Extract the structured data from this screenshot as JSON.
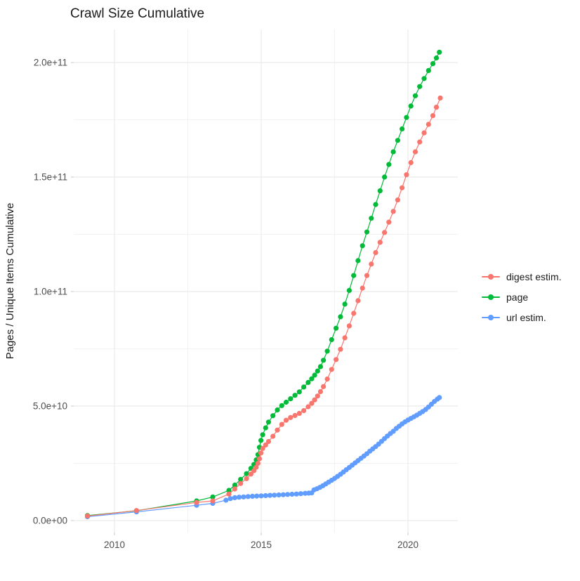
{
  "title": "Crawl Size Cumulative",
  "colors": {
    "background": "#FFFFFF",
    "grid_major": "#EBEBEB",
    "grid_minor": "#F2F2F2",
    "tick_mark": "#C9C9C9",
    "tick_label": "#4D4D4D",
    "text": "#1A1A1A",
    "digest": "#F8766D",
    "page": "#00BA38",
    "url": "#619CFF"
  },
  "y_axis": {
    "label": "Pages / Unique Items Cumulative",
    "tick_labels": [
      "0.0e+00",
      "5.0e+10",
      "1.0e+11",
      "1.5e+11",
      "2.0e+11"
    ],
    "tick_values": [
      0,
      50000000000.0,
      100000000000.0,
      150000000000.0,
      200000000000.0
    ]
  },
  "x_axis": {
    "tick_labels": [
      "2010",
      "2015",
      "2020"
    ],
    "tick_values": [
      2010,
      2015,
      2020
    ]
  },
  "legend": {
    "items": [
      {
        "label": "digest estim.",
        "color": "#F8766D"
      },
      {
        "label": "page",
        "color": "#00BA38"
      },
      {
        "label": "url estim.",
        "color": "#619CFF"
      }
    ]
  },
  "chart_data": {
    "type": "line",
    "title": "Crawl Size Cumulative",
    "xlabel": "",
    "ylabel": "Pages / Unique Items Cumulative",
    "xlim": [
      2008.6,
      2021.7
    ],
    "ylim": [
      0,
      214000000000.0
    ],
    "x_major": [
      2010,
      2015,
      2020
    ],
    "x_minor": [
      2012.5,
      2017.5
    ],
    "y_major": [
      0,
      50000000000.0,
      100000000000.0,
      150000000000.0,
      200000000000.0
    ],
    "y_minor": [
      25000000000.0,
      75000000000.0,
      125000000000.0,
      175000000000.0
    ],
    "grid": true,
    "legend_position": "right",
    "marker": "point",
    "draw_order": [
      1,
      2,
      0
    ],
    "series": [
      {
        "name": "digest estim.",
        "color": "#F8766D",
        "points": [
          [
            2009.08,
            2000000000.0
          ],
          [
            2010.75,
            4400000000.0
          ],
          [
            2012.8,
            7900000000.0
          ],
          [
            2013.35,
            8600000000.0
          ],
          [
            2013.9,
            11600000000.0
          ],
          [
            2014.1,
            13800000000.0
          ],
          [
            2014.3,
            16200000000.0
          ],
          [
            2014.5,
            18300000000.0
          ],
          [
            2014.65,
            20300000000.0
          ],
          [
            2014.75,
            21800000000.0
          ],
          [
            2014.83,
            23300000000.0
          ],
          [
            2014.89,
            25000000000.0
          ],
          [
            2014.94,
            27000000000.0
          ],
          [
            2014.99,
            29500000000.0
          ],
          [
            2015.05,
            31500000000.0
          ],
          [
            2015.15,
            33000000000.0
          ],
          [
            2015.25,
            34500000000.0
          ],
          [
            2015.4,
            36800000000.0
          ],
          [
            2015.55,
            39500000000.0
          ],
          [
            2015.7,
            42000000000.0
          ],
          [
            2015.85,
            43800000000.0
          ],
          [
            2016.0,
            45000000000.0
          ],
          [
            2016.15,
            45900000000.0
          ],
          [
            2016.3,
            46800000000.0
          ],
          [
            2016.45,
            48000000000.0
          ],
          [
            2016.6,
            49700000000.0
          ],
          [
            2016.72,
            51200000000.0
          ],
          [
            2016.82,
            52700000000.0
          ],
          [
            2016.92,
            54400000000.0
          ],
          [
            2017.02,
            56300000000.0
          ],
          [
            2017.12,
            58500000000.0
          ],
          [
            2017.25,
            61800000000.0
          ],
          [
            2017.4,
            66000000000.0
          ],
          [
            2017.55,
            70300000000.0
          ],
          [
            2017.7,
            74800000000.0
          ],
          [
            2017.85,
            79800000000.0
          ],
          [
            2018.0,
            85000000000.0
          ],
          [
            2018.15,
            90500000000.0
          ],
          [
            2018.3,
            96000000000.0
          ],
          [
            2018.45,
            101500000000.0
          ],
          [
            2018.6,
            107000000000.0
          ],
          [
            2018.75,
            112000000000.0
          ],
          [
            2018.9,
            117000000000.0
          ],
          [
            2019.05,
            121500000000.0
          ],
          [
            2019.2,
            125800000000.0
          ],
          [
            2019.35,
            130300000000.0
          ],
          [
            2019.5,
            135000000000.0
          ],
          [
            2019.65,
            140000000000.0
          ],
          [
            2019.8,
            145300000000.0
          ],
          [
            2019.95,
            151000000000.0
          ],
          [
            2020.1,
            156300000000.0
          ],
          [
            2020.25,
            161000000000.0
          ],
          [
            2020.4,
            165300000000.0
          ],
          [
            2020.55,
            169300000000.0
          ],
          [
            2020.7,
            173000000000.0
          ],
          [
            2020.85,
            176800000000.0
          ],
          [
            2020.97,
            180500000000.0
          ],
          [
            2021.1,
            184500000000.0
          ]
        ]
      },
      {
        "name": "page",
        "color": "#00BA38",
        "points": [
          [
            2009.08,
            2200000000.0
          ],
          [
            2010.75,
            4300000000.0
          ],
          [
            2012.8,
            8600000000.0
          ],
          [
            2013.35,
            10300000000.0
          ],
          [
            2013.9,
            13200000000.0
          ],
          [
            2014.1,
            15500000000.0
          ],
          [
            2014.3,
            18000000000.0
          ],
          [
            2014.5,
            20500000000.0
          ],
          [
            2014.65,
            22800000000.0
          ],
          [
            2014.75,
            24500000000.0
          ],
          [
            2014.83,
            26500000000.0
          ],
          [
            2014.89,
            28800000000.0
          ],
          [
            2014.94,
            32000000000.0
          ],
          [
            2014.99,
            35000000000.0
          ],
          [
            2015.05,
            37500000000.0
          ],
          [
            2015.15,
            40500000000.0
          ],
          [
            2015.25,
            43000000000.0
          ],
          [
            2015.4,
            45800000000.0
          ],
          [
            2015.55,
            48300000000.0
          ],
          [
            2015.7,
            50200000000.0
          ],
          [
            2015.85,
            51700000000.0
          ],
          [
            2016.0,
            53200000000.0
          ],
          [
            2016.15,
            54700000000.0
          ],
          [
            2016.3,
            56200000000.0
          ],
          [
            2016.45,
            58300000000.0
          ],
          [
            2016.6,
            60300000000.0
          ],
          [
            2016.72,
            61900000000.0
          ],
          [
            2016.82,
            63500000000.0
          ],
          [
            2016.92,
            65300000000.0
          ],
          [
            2017.02,
            67200000000.0
          ],
          [
            2017.12,
            70000000000.0
          ],
          [
            2017.25,
            74000000000.0
          ],
          [
            2017.4,
            79000000000.0
          ],
          [
            2017.55,
            84000000000.0
          ],
          [
            2017.7,
            89000000000.0
          ],
          [
            2017.85,
            94500000000.0
          ],
          [
            2018.0,
            100500000000.0
          ],
          [
            2018.15,
            107000000000.0
          ],
          [
            2018.3,
            113500000000.0
          ],
          [
            2018.45,
            120000000000.0
          ],
          [
            2018.6,
            126000000000.0
          ],
          [
            2018.75,
            132000000000.0
          ],
          [
            2018.9,
            138000000000.0
          ],
          [
            2019.05,
            144000000000.0
          ],
          [
            2019.2,
            150000000000.0
          ],
          [
            2019.35,
            155500000000.0
          ],
          [
            2019.5,
            161000000000.0
          ],
          [
            2019.65,
            166000000000.0
          ],
          [
            2019.8,
            171000000000.0
          ],
          [
            2019.95,
            176000000000.0
          ],
          [
            2020.1,
            181000000000.0
          ],
          [
            2020.25,
            185500000000.0
          ],
          [
            2020.4,
            189500000000.0
          ],
          [
            2020.55,
            193000000000.0
          ],
          [
            2020.7,
            196500000000.0
          ],
          [
            2020.85,
            199500000000.0
          ],
          [
            2020.97,
            202000000000.0
          ],
          [
            2021.07,
            204500000000.0
          ]
        ]
      },
      {
        "name": "url estim.",
        "color": "#619CFF",
        "points": [
          [
            2009.08,
            1700000000.0
          ],
          [
            2010.75,
            3800000000.0
          ],
          [
            2012.8,
            6700000000.0
          ],
          [
            2013.35,
            7500000000.0
          ],
          [
            2013.8,
            8900000000.0
          ],
          [
            2013.95,
            9600000000.0
          ],
          [
            2014.1,
            10000000000.0
          ],
          [
            2014.25,
            10200000000.0
          ],
          [
            2014.4,
            10350000000.0
          ],
          [
            2014.55,
            10500000000.0
          ],
          [
            2014.7,
            10600000000.0
          ],
          [
            2014.85,
            10700000000.0
          ],
          [
            2015.0,
            10800000000.0
          ],
          [
            2015.15,
            10900000000.0
          ],
          [
            2015.3,
            11000000000.0
          ],
          [
            2015.45,
            11100000000.0
          ],
          [
            2015.6,
            11200000000.0
          ],
          [
            2015.75,
            11300000000.0
          ],
          [
            2015.9,
            11400000000.0
          ],
          [
            2016.05,
            11500000000.0
          ],
          [
            2016.2,
            11600000000.0
          ],
          [
            2016.35,
            11750000000.0
          ],
          [
            2016.5,
            11900000000.0
          ],
          [
            2016.62,
            12000000000.0
          ],
          [
            2016.72,
            12100000000.0
          ],
          [
            2016.8,
            13400000000.0
          ],
          [
            2016.9,
            13900000000.0
          ],
          [
            2017.0,
            14500000000.0
          ],
          [
            2017.1,
            15200000000.0
          ],
          [
            2017.2,
            16000000000.0
          ],
          [
            2017.3,
            16800000000.0
          ],
          [
            2017.4,
            17600000000.0
          ],
          [
            2017.5,
            18400000000.0
          ],
          [
            2017.6,
            19300000000.0
          ],
          [
            2017.7,
            20200000000.0
          ],
          [
            2017.8,
            21200000000.0
          ],
          [
            2017.9,
            22200000000.0
          ],
          [
            2018.0,
            23200000000.0
          ],
          [
            2018.1,
            24200000000.0
          ],
          [
            2018.2,
            25200000000.0
          ],
          [
            2018.3,
            26200000000.0
          ],
          [
            2018.4,
            27200000000.0
          ],
          [
            2018.5,
            28200000000.0
          ],
          [
            2018.6,
            29200000000.0
          ],
          [
            2018.7,
            30300000000.0
          ],
          [
            2018.8,
            31300000000.0
          ],
          [
            2018.9,
            32300000000.0
          ],
          [
            2019.0,
            33400000000.0
          ],
          [
            2019.1,
            34600000000.0
          ],
          [
            2019.2,
            35800000000.0
          ],
          [
            2019.3,
            36900000000.0
          ],
          [
            2019.4,
            38000000000.0
          ],
          [
            2019.5,
            39000000000.0
          ],
          [
            2019.6,
            40200000000.0
          ],
          [
            2019.7,
            41200000000.0
          ],
          [
            2019.8,
            42200000000.0
          ],
          [
            2019.9,
            43100000000.0
          ],
          [
            2020.0,
            43900000000.0
          ],
          [
            2020.1,
            44600000000.0
          ],
          [
            2020.2,
            45300000000.0
          ],
          [
            2020.3,
            46000000000.0
          ],
          [
            2020.4,
            46800000000.0
          ],
          [
            2020.5,
            47600000000.0
          ],
          [
            2020.6,
            48500000000.0
          ],
          [
            2020.7,
            49600000000.0
          ],
          [
            2020.8,
            50800000000.0
          ],
          [
            2020.9,
            52000000000.0
          ],
          [
            2021.0,
            53000000000.0
          ],
          [
            2021.07,
            53700000000.0
          ]
        ]
      }
    ]
  }
}
